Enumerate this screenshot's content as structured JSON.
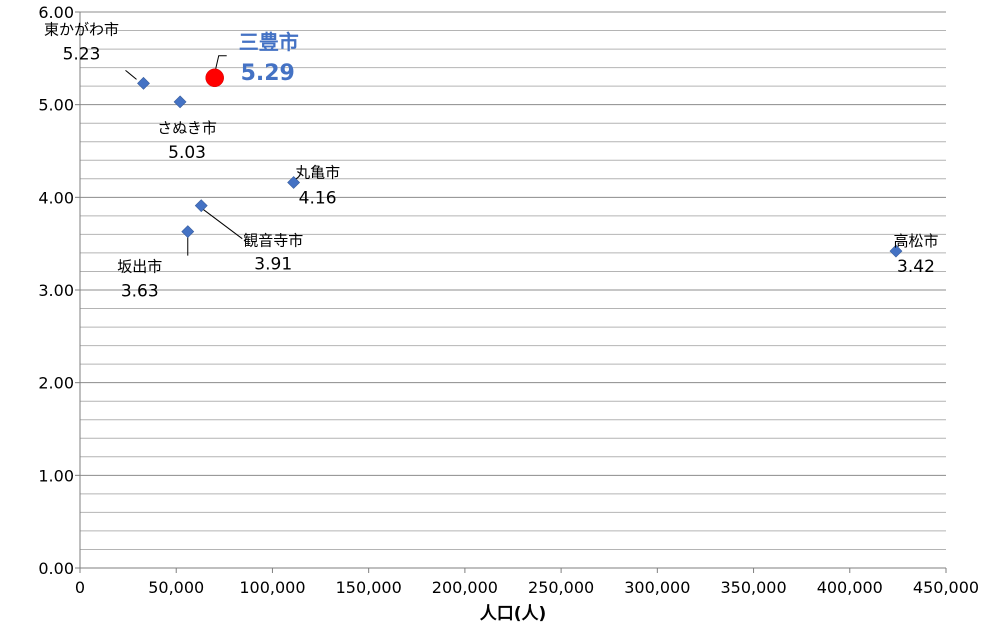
{
  "chart_data": {
    "type": "scatter",
    "xlabel": "人口(人)",
    "ylabel": "",
    "xlim": [
      0,
      450000
    ],
    "ylim": [
      0,
      6
    ],
    "x_ticks": [
      "0",
      "50,000",
      "100,000",
      "150,000",
      "200,000",
      "250,000",
      "300,000",
      "350,000",
      "400,000",
      "450,000"
    ],
    "y_ticks": [
      "0.00",
      "1.00",
      "2.00",
      "3.00",
      "4.00",
      "5.00",
      "6.00"
    ],
    "grid": "horizontal",
    "marker_color": "#4472C4",
    "highlight_color": "#FF0000",
    "highlight_text_color": "#4472C4",
    "points": [
      {
        "name": "東かがわ市",
        "x": 33000,
        "y": 5.23,
        "label": "5.23"
      },
      {
        "name": "さぬき市",
        "x": 52000,
        "y": 5.03,
        "label": "5.03"
      },
      {
        "name": "丸亀市",
        "x": 111000,
        "y": 4.16,
        "label": "4.16"
      },
      {
        "name": "観音寺市",
        "x": 63000,
        "y": 3.91,
        "label": "3.91"
      },
      {
        "name": "坂出市",
        "x": 56000,
        "y": 3.63,
        "label": "3.63"
      },
      {
        "name": "高松市",
        "x": 424000,
        "y": 3.42,
        "label": "3.42"
      }
    ],
    "highlight": {
      "name": "三豊市",
      "x": 70000,
      "y": 5.29,
      "label": "5.29"
    }
  }
}
